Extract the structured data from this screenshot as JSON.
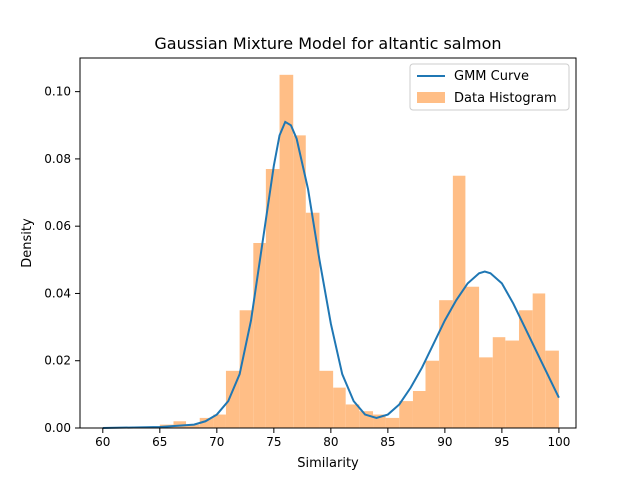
{
  "chart_data": {
    "type": "bar",
    "title": "Gaussian Mixture Model for altantic salmon",
    "xlabel": "Similarity",
    "ylabel": "Density",
    "xlim": [
      58,
      101.5
    ],
    "ylim": [
      0,
      0.11
    ],
    "xticks": [
      60,
      65,
      70,
      75,
      80,
      85,
      90,
      95,
      100
    ],
    "xtick_labels": [
      "60",
      "65",
      "70",
      "75",
      "80",
      "85",
      "90",
      "95",
      "100"
    ],
    "yticks": [
      0.0,
      0.02,
      0.04,
      0.06,
      0.08,
      0.1
    ],
    "ytick_labels": [
      "0.00",
      "0.02",
      "0.04",
      "0.06",
      "0.08",
      "0.10"
    ],
    "grid": false,
    "legend": {
      "placement": "top-right",
      "entries": [
        "GMM Curve",
        "Data Histogram"
      ]
    },
    "histogram": {
      "name": "Data Histogram",
      "color": "#ffbe86",
      "bin_edges": [
        65.0,
        66.2,
        67.3,
        68.5,
        69.7,
        70.8,
        72.0,
        73.2,
        74.3,
        75.5,
        76.7,
        77.8,
        79.0,
        80.2,
        81.3,
        82.5,
        83.7,
        84.8,
        86.0,
        87.2,
        88.3,
        89.5,
        90.7,
        91.8,
        93.0,
        94.2,
        95.3,
        96.5,
        97.7,
        98.8,
        100.0
      ],
      "densities": [
        0.001,
        0.002,
        0.001,
        0.003,
        0.004,
        0.017,
        0.035,
        0.055,
        0.077,
        0.105,
        0.087,
        0.064,
        0.017,
        0.012,
        0.007,
        0.005,
        0.004,
        0.003,
        0.008,
        0.011,
        0.02,
        0.038,
        0.075,
        0.042,
        0.021,
        0.027,
        0.026,
        0.035,
        0.04,
        0.023
      ]
    },
    "series": [
      {
        "name": "GMM Curve",
        "type": "line",
        "color": "#1f77b4",
        "x": [
          60,
          65,
          68,
          69,
          70,
          71,
          72,
          73,
          74,
          75,
          75.5,
          76,
          76.5,
          77,
          78,
          79,
          80,
          81,
          82,
          83,
          84,
          85,
          86,
          87,
          88,
          89,
          90,
          91,
          92,
          93,
          93.5,
          94,
          95,
          96,
          97,
          98,
          99,
          100
        ],
        "y": [
          0.0,
          0.0003,
          0.001,
          0.002,
          0.004,
          0.008,
          0.016,
          0.032,
          0.055,
          0.078,
          0.087,
          0.091,
          0.09,
          0.086,
          0.071,
          0.05,
          0.031,
          0.016,
          0.008,
          0.004,
          0.003,
          0.004,
          0.007,
          0.012,
          0.018,
          0.025,
          0.032,
          0.038,
          0.043,
          0.046,
          0.0465,
          0.046,
          0.043,
          0.037,
          0.03,
          0.023,
          0.016,
          0.009
        ]
      }
    ]
  }
}
